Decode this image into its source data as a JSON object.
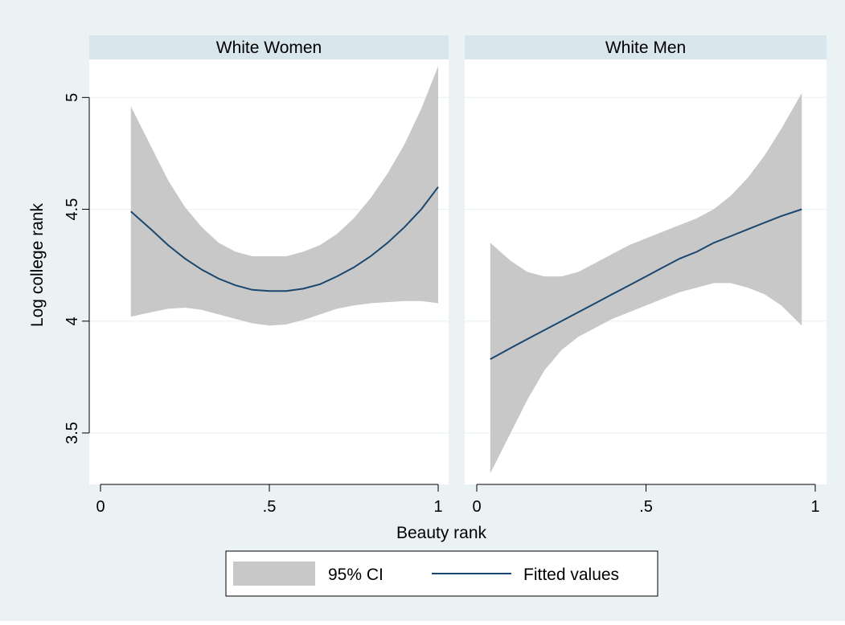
{
  "chart_data": {
    "type": "line",
    "ylabel": "Log college rank",
    "xlabel": "Beauty rank",
    "xlim": [
      0,
      1
    ],
    "ylim": [
      3.5,
      5
    ],
    "x_ticks": [
      {
        "value": 0,
        "label": "0"
      },
      {
        "value": 0.5,
        "label": ".5"
      },
      {
        "value": 1,
        "label": "1"
      }
    ],
    "y_ticks": [
      {
        "value": 3.5,
        "label": "3.5"
      },
      {
        "value": 4,
        "label": "4"
      },
      {
        "value": 4.5,
        "label": "4.5"
      },
      {
        "value": 5,
        "label": "5"
      }
    ],
    "grid": true,
    "legend": {
      "placement": "bottom",
      "entries": [
        {
          "label": "95% CI",
          "kind": "band",
          "color": "#c8c8c8"
        },
        {
          "label": "Fitted values",
          "kind": "line",
          "color": "#1a476f"
        }
      ]
    },
    "colors": {
      "background": "#eaf2f3",
      "strip": "#d9e6eb",
      "band": "#c8c8c8",
      "line": "#1a476f",
      "grid": "#eaf2f3"
    },
    "panels": [
      {
        "title": "White Women",
        "series": [
          {
            "name": "Fitted values",
            "x": [
              0.09,
              0.15,
              0.2,
              0.25,
              0.3,
              0.35,
              0.4,
              0.45,
              0.5,
              0.55,
              0.6,
              0.65,
              0.7,
              0.75,
              0.8,
              0.85,
              0.9,
              0.95,
              1.0
            ],
            "y": [
              4.49,
              4.41,
              4.34,
              4.28,
              4.23,
              4.19,
              4.16,
              4.14,
              4.135,
              4.135,
              4.145,
              4.165,
              4.2,
              4.24,
              4.29,
              4.35,
              4.42,
              4.5,
              4.6
            ]
          },
          {
            "name": "95% CI upper",
            "x": [
              0.09,
              0.15,
              0.2,
              0.25,
              0.3,
              0.35,
              0.4,
              0.45,
              0.5,
              0.55,
              0.6,
              0.65,
              0.7,
              0.75,
              0.8,
              0.85,
              0.9,
              0.95,
              1.0
            ],
            "y": [
              4.96,
              4.78,
              4.63,
              4.51,
              4.42,
              4.35,
              4.31,
              4.29,
              4.29,
              4.29,
              4.31,
              4.34,
              4.39,
              4.46,
              4.55,
              4.66,
              4.79,
              4.95,
              5.14
            ]
          },
          {
            "name": "95% CI lower",
            "x": [
              0.09,
              0.15,
              0.2,
              0.25,
              0.3,
              0.35,
              0.4,
              0.45,
              0.5,
              0.55,
              0.6,
              0.65,
              0.7,
              0.75,
              0.8,
              0.85,
              0.9,
              0.95,
              1.0
            ],
            "y": [
              4.02,
              4.04,
              4.055,
              4.06,
              4.05,
              4.03,
              4.01,
              3.99,
              3.98,
              3.985,
              4.005,
              4.03,
              4.055,
              4.07,
              4.08,
              4.085,
              4.09,
              4.09,
              4.08
            ]
          }
        ]
      },
      {
        "title": "White Men",
        "series": [
          {
            "name": "Fitted values",
            "x": [
              0.04,
              0.1,
              0.15,
              0.2,
              0.25,
              0.3,
              0.35,
              0.4,
              0.45,
              0.5,
              0.55,
              0.6,
              0.65,
              0.7,
              0.75,
              0.8,
              0.85,
              0.9,
              0.96
            ],
            "y": [
              3.83,
              3.88,
              3.92,
              3.96,
              4.0,
              4.04,
              4.08,
              4.12,
              4.16,
              4.2,
              4.24,
              4.28,
              4.31,
              4.35,
              4.38,
              4.41,
              4.44,
              4.47,
              4.5
            ]
          },
          {
            "name": "95% CI upper",
            "x": [
              0.04,
              0.1,
              0.15,
              0.2,
              0.25,
              0.3,
              0.35,
              0.4,
              0.45,
              0.5,
              0.55,
              0.6,
              0.65,
              0.7,
              0.75,
              0.8,
              0.85,
              0.9,
              0.96
            ],
            "y": [
              4.35,
              4.27,
              4.22,
              4.2,
              4.2,
              4.22,
              4.26,
              4.3,
              4.34,
              4.37,
              4.4,
              4.43,
              4.46,
              4.5,
              4.56,
              4.64,
              4.74,
              4.86,
              5.02
            ]
          },
          {
            "name": "95% CI lower",
            "x": [
              0.04,
              0.1,
              0.15,
              0.2,
              0.25,
              0.3,
              0.35,
              0.4,
              0.45,
              0.5,
              0.55,
              0.6,
              0.65,
              0.7,
              0.75,
              0.8,
              0.85,
              0.9,
              0.96
            ],
            "y": [
              3.32,
              3.5,
              3.65,
              3.78,
              3.87,
              3.93,
              3.97,
              4.01,
              4.04,
              4.07,
              4.1,
              4.13,
              4.15,
              4.17,
              4.17,
              4.15,
              4.12,
              4.07,
              3.98
            ]
          }
        ]
      }
    ]
  }
}
